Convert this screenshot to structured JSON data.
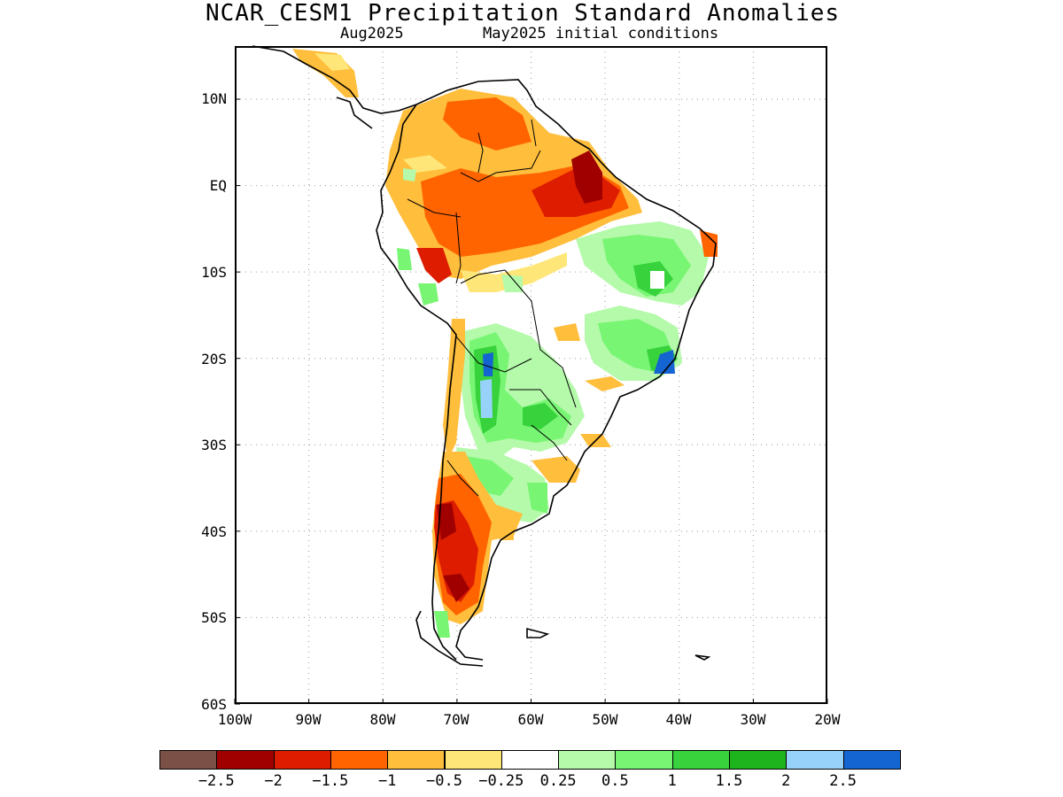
{
  "title": "NCAR_CESM1 Precipitation Standard Anomalies",
  "subtitle_left": "Aug2025",
  "subtitle_right": "May2025 initial conditions",
  "axes": {
    "lon_labels": [
      "100W",
      "90W",
      "80W",
      "70W",
      "60W",
      "50W",
      "40W",
      "30W",
      "20W"
    ],
    "lat_labels": [
      "10N",
      "EQ",
      "10S",
      "20S",
      "30S",
      "40S",
      "50S",
      "60S"
    ],
    "lon_range": [
      -100,
      -20
    ],
    "lat_range": [
      -60,
      15
    ],
    "grid": "dotted"
  },
  "colorbar": {
    "colors": [
      "#7b5147",
      "#a00000",
      "#dd1c00",
      "#ff6400",
      "#ffbe3c",
      "#ffe678",
      "#ffffff",
      "#b4faaa",
      "#78f573",
      "#37d23c",
      "#1eb41e",
      "#96d2fa",
      "#1464d2"
    ],
    "labels": [
      "−2.5",
      "−2",
      "−1.5",
      "−1",
      "−0.5",
      "−0.25",
      "0.25",
      "0.5",
      "1",
      "1.5",
      "2",
      "2.5"
    ]
  }
}
